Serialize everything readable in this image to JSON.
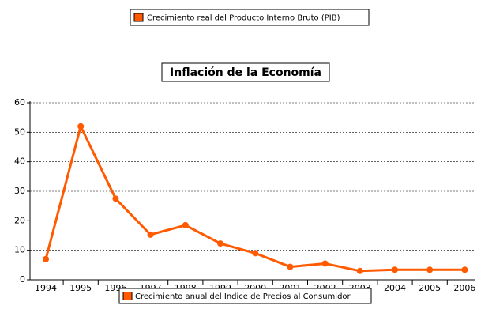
{
  "top_legend": {
    "label": "Crecimiento real del Producto Interno Bruto (PIB)",
    "color": "#ff5a00"
  },
  "chart_data": {
    "type": "line",
    "title": "Inflación de la Economía",
    "categories": [
      "1994",
      "1995",
      "1996",
      "1997",
      "1998",
      "1999",
      "2000",
      "2001",
      "2002",
      "2003",
      "2004",
      "2005",
      "2006"
    ],
    "series": [
      {
        "name": "Crecimiento anual del Indice de Precios al Consumidor",
        "color": "#ff5a00",
        "values": [
          7,
          52,
          27.5,
          15.3,
          18.5,
          12.3,
          9,
          4.4,
          5.5,
          3,
          3.4,
          3.4,
          3.4
        ]
      }
    ],
    "ylim": [
      0,
      60
    ],
    "yticks": [
      0,
      10,
      20,
      30,
      40,
      50,
      60
    ],
    "grid": true
  }
}
